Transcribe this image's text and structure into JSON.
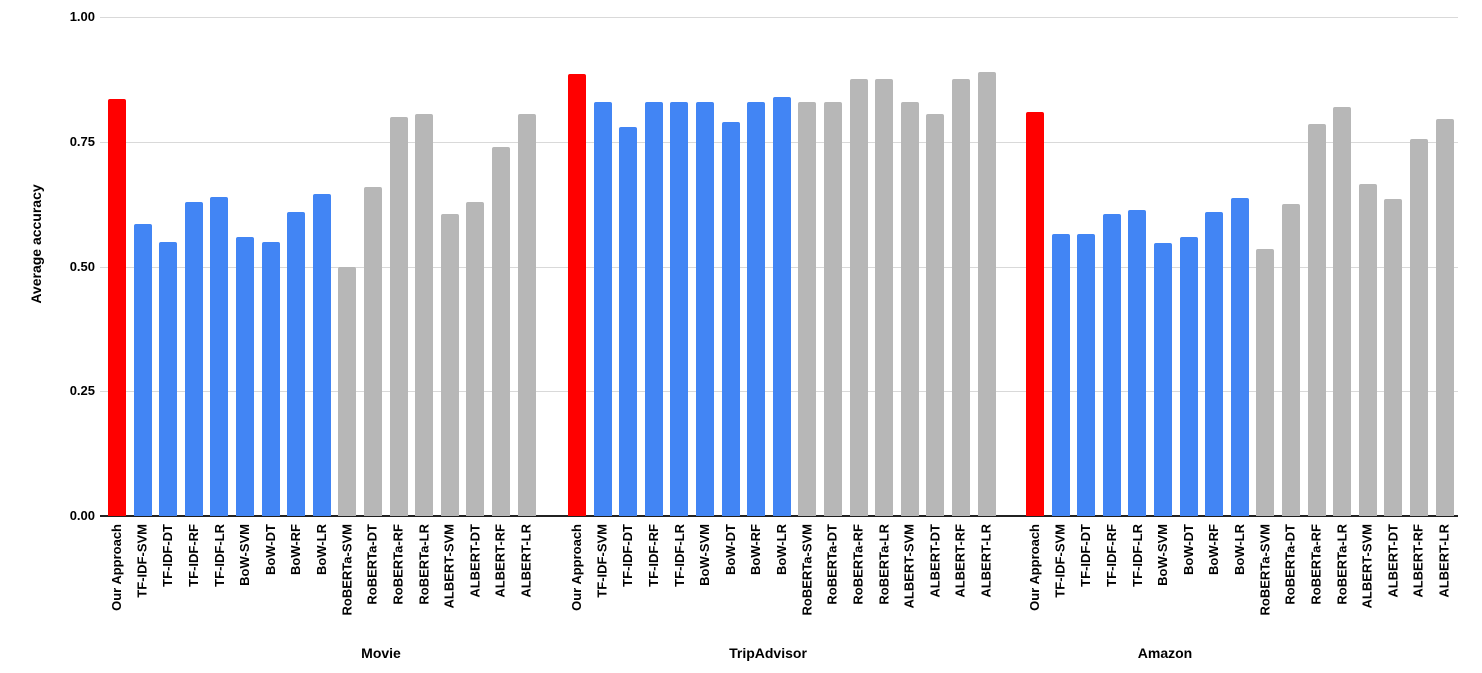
{
  "chart_data": {
    "type": "bar",
    "title": "",
    "xlabel": "",
    "ylabel": "Average accuracy",
    "ylim": [
      0,
      1.0
    ],
    "yticks": [
      0,
      0.25,
      0.5,
      0.75,
      1.0
    ],
    "ytick_labels": [
      "0.00",
      "0.25",
      "0.50",
      "0.75",
      "1.00"
    ],
    "grid": true,
    "legend": "none",
    "bar_labels": [
      "Our Approach",
      "TF-IDF-SVM",
      "TF-IDF-DT",
      "TF-IDF-RF",
      "TF-IDF-LR",
      "BoW-SVM",
      "BoW-DT",
      "BoW-RF",
      "BoW-LR",
      "RoBERTa-SVM",
      "RoBERTa-DT",
      "RoBERTa-RF",
      "RoBERTa-LR",
      "ALBERT-SVM",
      "ALBERT-DT",
      "ALBERT-RF",
      "ALBERT-LR"
    ],
    "bar_roles": [
      "highlight",
      "classic",
      "classic",
      "classic",
      "classic",
      "classic",
      "classic",
      "classic",
      "classic",
      "transformer",
      "transformer",
      "transformer",
      "transformer",
      "transformer",
      "transformer",
      "transformer",
      "transformer"
    ],
    "palette": {
      "highlight": "#ff0000",
      "classic": "#4285f4",
      "transformer": "#b7b7b7",
      "gridline": "#d9d9d9",
      "axis_baseline": "#212121",
      "text": "#000000"
    },
    "groups": [
      {
        "name": "Movie",
        "values": [
          0.835,
          0.585,
          0.55,
          0.63,
          0.64,
          0.56,
          0.55,
          0.61,
          0.645,
          0.5,
          0.66,
          0.8,
          0.805,
          0.605,
          0.63,
          0.74,
          0.805
        ]
      },
      {
        "name": "TripAdvisor",
        "values": [
          0.885,
          0.83,
          0.78,
          0.83,
          0.83,
          0.83,
          0.79,
          0.83,
          0.84,
          0.83,
          0.83,
          0.875,
          0.875,
          0.83,
          0.805,
          0.875,
          0.89
        ]
      },
      {
        "name": "Amazon",
        "values": [
          0.81,
          0.565,
          0.565,
          0.605,
          0.613,
          0.548,
          0.56,
          0.61,
          0.637,
          0.535,
          0.625,
          0.785,
          0.82,
          0.665,
          0.635,
          0.755,
          0.795
        ]
      }
    ]
  }
}
